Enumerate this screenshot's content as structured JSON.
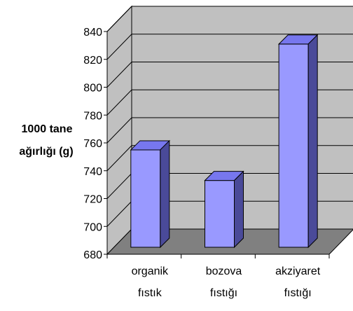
{
  "chart_data": {
    "type": "bar",
    "categories": [
      [
        "organik",
        "fıstık"
      ],
      [
        "bozova",
        "fıstığı"
      ],
      [
        "akziyaret",
        "fıstığı"
      ]
    ],
    "values": [
      755,
      733,
      831
    ],
    "title": "",
    "xlabel": "",
    "ylabel_lines": [
      "1000 tane",
      "ağırlığı (g)"
    ],
    "ylim": [
      680,
      840
    ],
    "yticks": [
      680,
      700,
      720,
      740,
      760,
      780,
      800,
      820,
      840
    ],
    "grid": true,
    "three_d": true,
    "colors": {
      "bar_front": "#9999ff",
      "bar_top": "#7777ee",
      "bar_side": "#4a4a99",
      "wall": "#c0c0c0",
      "floor": "#808080",
      "gridline": "#000000"
    }
  }
}
